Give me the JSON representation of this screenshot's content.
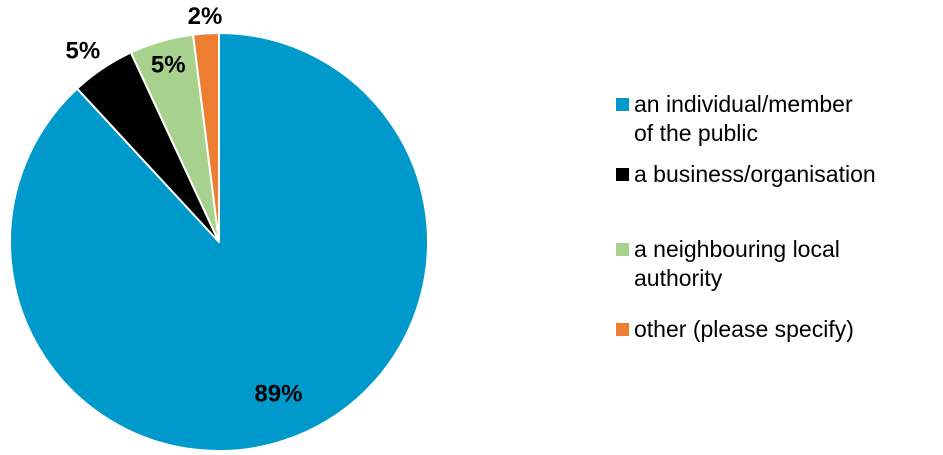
{
  "chart_data": {
    "type": "pie",
    "title": "",
    "categories": [
      "an individual/member of the public",
      "a business/organisation",
      "a neighbouring local authority",
      "other (please specify)"
    ],
    "values": [
      89,
      5,
      5,
      2
    ],
    "labels": [
      "89%",
      "5%",
      "5%",
      "2%"
    ],
    "colors": [
      "#0099cc",
      "#000000",
      "#a9d18e",
      "#ed7d31"
    ],
    "legend": {
      "position": "right",
      "entries": [
        [
          "an individual/member",
          "of the public"
        ],
        [
          "a business/organisation"
        ],
        [
          "a neighbouring local",
          "authority"
        ],
        [
          "other (please specify)"
        ]
      ]
    }
  }
}
